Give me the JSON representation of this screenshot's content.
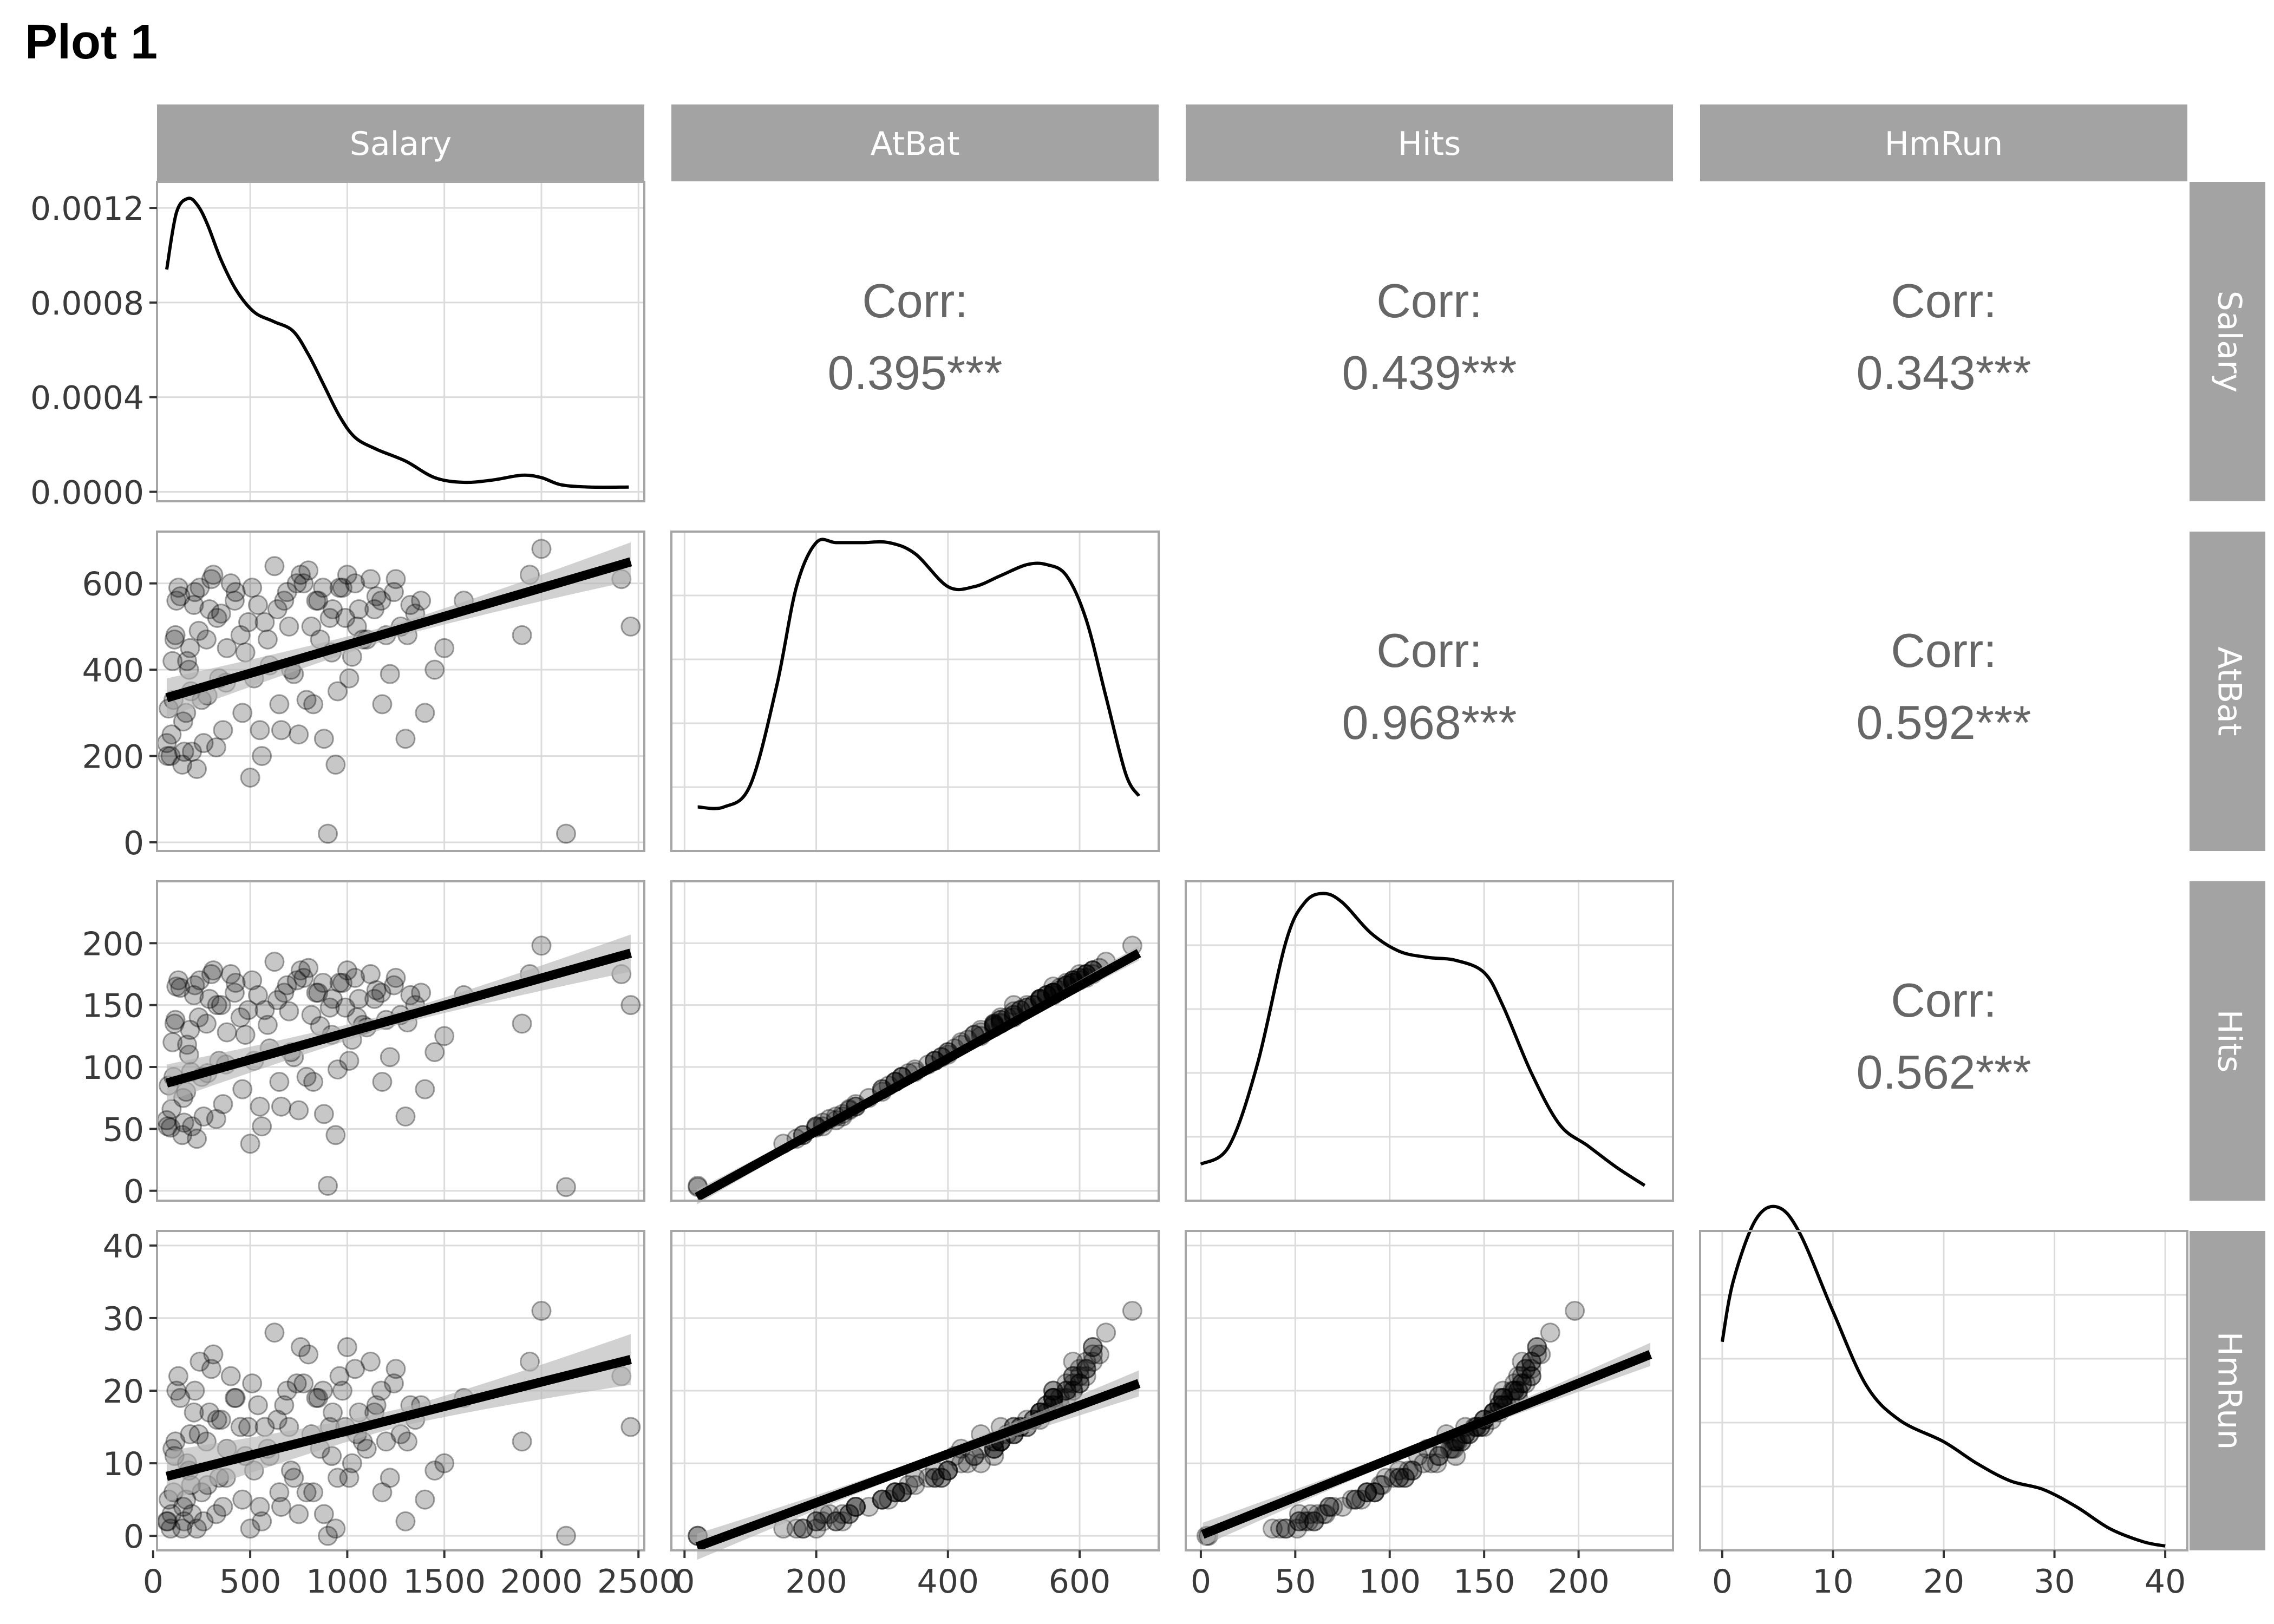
{
  "figure": {
    "title": "Plot 1",
    "variables": [
      "Salary",
      "AtBat",
      "Hits",
      "HmRun"
    ],
    "colors": {
      "strip_bg": "#a3a3a3",
      "strip_text": "#ffffff",
      "panel_border": "#a6a6a6",
      "grid": "#dcdcdc",
      "point": "#000000",
      "line": "#000000",
      "ribbon": "#b3b3b3",
      "corr_text": "#666666",
      "tick_text": "#3a3a3a"
    }
  },
  "chart_data": {
    "type": "scatter",
    "subtype": "scatterplot-matrix",
    "title": "Plot 1",
    "variables": [
      "Salary",
      "AtBat",
      "Hits",
      "HmRun"
    ],
    "grid": true,
    "axes": {
      "Salary": {
        "lim": [
          20,
          2530
        ],
        "ticks": [
          0,
          500,
          1000,
          1500,
          2000,
          2500
        ],
        "tick_labels": [
          "0",
          "500",
          "1000",
          "1500",
          "2000",
          "2500"
        ]
      },
      "AtBat": {
        "lim": [
          -20,
          720
        ],
        "ticks": [
          0,
          200,
          400,
          600
        ],
        "tick_labels": [
          "0",
          "200",
          "400",
          "600"
        ]
      },
      "Hits": {
        "lim": [
          -8,
          250
        ],
        "ticks": [
          0,
          50,
          100,
          150,
          200
        ],
        "tick_labels": [
          "0",
          "50",
          "100",
          "150",
          "200"
        ]
      },
      "HmRun": {
        "lim": [
          -2,
          42
        ],
        "ticks": [
          0,
          10,
          20,
          30,
          40
        ],
        "tick_labels": [
          "0",
          "10",
          "20",
          "30",
          "40"
        ]
      }
    },
    "density": {
      "Salary": {
        "y_lim": [
          -4e-05,
          0.00131
        ],
        "y_ticks": [
          0,
          0.0004,
          0.0008,
          0.0012
        ],
        "y_tick_labels": [
          "0.0000",
          "0.0004",
          "0.0008",
          "0.0012"
        ],
        "x": [
          70,
          120,
          180,
          230,
          280,
          350,
          430,
          520,
          620,
          720,
          800,
          880,
          960,
          1040,
          1150,
          1300,
          1450,
          1600,
          1750,
          1900,
          2000,
          2100,
          2250,
          2450
        ],
        "y": [
          0.00094,
          0.00118,
          0.00124,
          0.00121,
          0.00113,
          0.00098,
          0.00085,
          0.00076,
          0.00072,
          0.00068,
          0.00058,
          0.00045,
          0.00032,
          0.00023,
          0.00018,
          0.00013,
          6e-05,
          4e-05,
          5e-05,
          7e-05,
          6e-05,
          3e-05,
          2e-05,
          2e-05
        ]
      },
      "AtBat": {
        "y_lim": [
          0,
          0.0029
        ],
        "x": [
          20,
          60,
          100,
          140,
          170,
          200,
          230,
          270,
          310,
          350,
          400,
          440,
          480,
          520,
          550,
          580,
          610,
          640,
          670,
          690
        ],
        "y": [
          0.0004,
          0.0004,
          0.0006,
          0.0015,
          0.0024,
          0.0028,
          0.0028,
          0.0028,
          0.0028,
          0.0027,
          0.0024,
          0.0024,
          0.0025,
          0.0026,
          0.0026,
          0.0025,
          0.0021,
          0.0014,
          0.0007,
          0.0005
        ]
      },
      "Hits": {
        "y_lim": [
          0,
          0.0105
        ],
        "x": [
          0,
          15,
          30,
          45,
          55,
          65,
          75,
          90,
          105,
          120,
          135,
          150,
          160,
          175,
          190,
          205,
          220,
          235
        ],
        "y": [
          0.0012,
          0.0018,
          0.0045,
          0.0085,
          0.0098,
          0.0101,
          0.0098,
          0.0088,
          0.0082,
          0.008,
          0.0079,
          0.0075,
          0.0064,
          0.0042,
          0.0025,
          0.0018,
          0.0011,
          0.0005
        ]
      },
      "HmRun": {
        "y_lim": [
          0,
          0.0735
        ],
        "x": [
          0,
          1,
          3,
          5,
          7,
          10,
          13,
          16,
          20,
          23,
          26,
          29,
          32,
          35,
          38,
          40
        ],
        "y": [
          0.048,
          0.062,
          0.076,
          0.079,
          0.073,
          0.055,
          0.038,
          0.03,
          0.025,
          0.02,
          0.016,
          0.014,
          0.01,
          0.005,
          0.002,
          0.001
        ]
      }
    },
    "correlations": [
      {
        "row": "Salary",
        "col": "AtBat",
        "label": "Corr:",
        "value": "0.395***"
      },
      {
        "row": "Salary",
        "col": "Hits",
        "label": "Corr:",
        "value": "0.439***"
      },
      {
        "row": "Salary",
        "col": "HmRun",
        "label": "Corr:",
        "value": "0.343***"
      },
      {
        "row": "AtBat",
        "col": "Hits",
        "label": "Corr:",
        "value": "0.968***"
      },
      {
        "row": "AtBat",
        "col": "HmRun",
        "label": "Corr:",
        "value": "0.592***"
      },
      {
        "row": "Hits",
        "col": "HmRun",
        "label": "Corr:",
        "value": "0.562***"
      }
    ],
    "regressions": [
      {
        "x": "Salary",
        "y": "AtBat",
        "x_range": [
          70,
          2460
        ],
        "y_range": [
          335,
          650
        ],
        "band": 45
      },
      {
        "x": "Salary",
        "y": "Hits",
        "x_range": [
          70,
          2460
        ],
        "y_range": [
          87,
          192
        ],
        "band": 15
      },
      {
        "x": "Salary",
        "y": "HmRun",
        "x_range": [
          70,
          2460
        ],
        "y_range": [
          8.2,
          24.3
        ],
        "band": 3.5
      },
      {
        "x": "AtBat",
        "y": "Hits",
        "x_range": [
          19,
          690
        ],
        "y_range": [
          -5,
          192
        ],
        "band": 6
      },
      {
        "x": "AtBat",
        "y": "HmRun",
        "x_range": [
          19,
          690
        ],
        "y_range": [
          -1.5,
          21.0
        ],
        "band": 1.8
      },
      {
        "x": "Hits",
        "y": "HmRun",
        "x_range": [
          1,
          238
        ],
        "y_range": [
          0.2,
          25.0
        ],
        "band": 1.6
      }
    ],
    "samples": {
      "Salary": [
        70,
        90,
        100,
        120,
        150,
        170,
        190,
        200,
        240,
        280,
        330,
        360,
        400,
        450,
        500,
        520,
        540,
        600,
        625,
        650,
        700,
        740,
        750,
        800,
        850,
        875,
        900,
        925,
        950,
        1000,
        1050,
        1100,
        1150,
        1175,
        1200,
        1250,
        1300,
        1350,
        1500,
        1600,
        1900,
        1940,
        2000,
        2127,
        2412,
        2460,
        80,
        110,
        130,
        160,
        185,
        210,
        225,
        250,
        275,
        300,
        325,
        350,
        375,
        425,
        475,
        550,
        575,
        675,
        725,
        775,
        825,
        860,
        910,
        940,
        975,
        1025,
        1060,
        1120,
        1220,
        1275,
        1325,
        1400,
        1450,
        75,
        95,
        105,
        115,
        140,
        155,
        175,
        195,
        215,
        235,
        260,
        290,
        310,
        340,
        380,
        420,
        460,
        490,
        510,
        560,
        590,
        640,
        660,
        690,
        710,
        760,
        790,
        815,
        840,
        880,
        920,
        960,
        990,
        1010,
        1040,
        1080,
        1140,
        1180,
        1240,
        1310,
        1380
      ],
      "AtBat": [
        230,
        200,
        420,
        560,
        180,
        300,
        450,
        210,
        590,
        340,
        520,
        260,
        600,
        480,
        150,
        380,
        550,
        410,
        640,
        320,
        500,
        600,
        250,
        630,
        560,
        590,
        20,
        540,
        350,
        620,
        500,
        470,
        570,
        560,
        480,
        610,
        240,
        530,
        450,
        560,
        480,
        620,
        680,
        20,
        610,
        500,
        310,
        470,
        590,
        210,
        400,
        550,
        170,
        330,
        470,
        610,
        220,
        530,
        370,
        580,
        440,
        260,
        510,
        560,
        390,
        600,
        320,
        470,
        520,
        180,
        590,
        430,
        540,
        610,
        390,
        500,
        550,
        300,
        400,
        200,
        250,
        330,
        480,
        570,
        280,
        420,
        350,
        580,
        490,
        230,
        540,
        620,
        380,
        450,
        560,
        300,
        510,
        590,
        200,
        470,
        540,
        260,
        580,
        400,
        620,
        330,
        500,
        560,
        240,
        440,
        590,
        520,
        380,
        600,
        470,
        540,
        320,
        580,
        480,
        560
      ],
      "Hits": [
        57,
        51,
        120,
        165,
        45,
        80,
        130,
        52,
        170,
        95,
        150,
        70,
        175,
        140,
        38,
        105,
        158,
        115,
        185,
        88,
        145,
        170,
        65,
        180,
        160,
        168,
        4,
        155,
        98,
        178,
        140,
        132,
        162,
        160,
        138,
        172,
        60,
        150,
        125,
        158,
        135,
        175,
        198,
        3,
        175,
        150,
        85,
        135,
        170,
        55,
        110,
        158,
        42,
        92,
        135,
        175,
        58,
        150,
        102,
        168,
        126,
        68,
        146,
        160,
        108,
        172,
        88,
        133,
        148,
        45,
        168,
        122,
        155,
        175,
        108,
        142,
        158,
        82,
        112,
        52,
        66,
        92,
        138,
        164,
        75,
        118,
        96,
        166,
        140,
        60,
        155,
        178,
        105,
        128,
        160,
        82,
        146,
        170,
        52,
        134,
        154,
        68,
        166,
        112,
        178,
        92,
        142,
        160,
        62,
        126,
        168,
        148,
        105,
        172,
        134,
        155,
        88,
        166,
        136,
        160
      ],
      "HmRun": [
        2,
        1,
        12,
        20,
        1,
        5,
        14,
        3,
        24,
        7,
        16,
        4,
        22,
        15,
        1,
        9,
        18,
        11,
        28,
        6,
        15,
        21,
        3,
        25,
        19,
        20,
        0,
        17,
        8,
        26,
        14,
        12,
        18,
        20,
        13,
        23,
        2,
        16,
        10,
        19,
        13,
        24,
        31,
        0,
        22,
        15,
        5,
        11,
        22,
        2,
        9,
        17,
        1,
        6,
        13,
        23,
        3,
        16,
        8,
        19,
        11,
        4,
        15,
        18,
        8,
        21,
        6,
        12,
        15,
        1,
        20,
        10,
        17,
        24,
        8,
        14,
        18,
        5,
        9,
        2,
        3,
        6,
        13,
        19,
        4,
        10,
        7,
        20,
        14,
        2,
        17,
        25,
        8,
        12,
        19,
        5,
        15,
        21,
        2,
        12,
        16,
        4,
        20,
        9,
        26,
        6,
        14,
        19,
        3,
        11,
        22,
        15,
        8,
        23,
        13,
        17,
        6,
        21,
        13,
        18
      ]
    }
  }
}
